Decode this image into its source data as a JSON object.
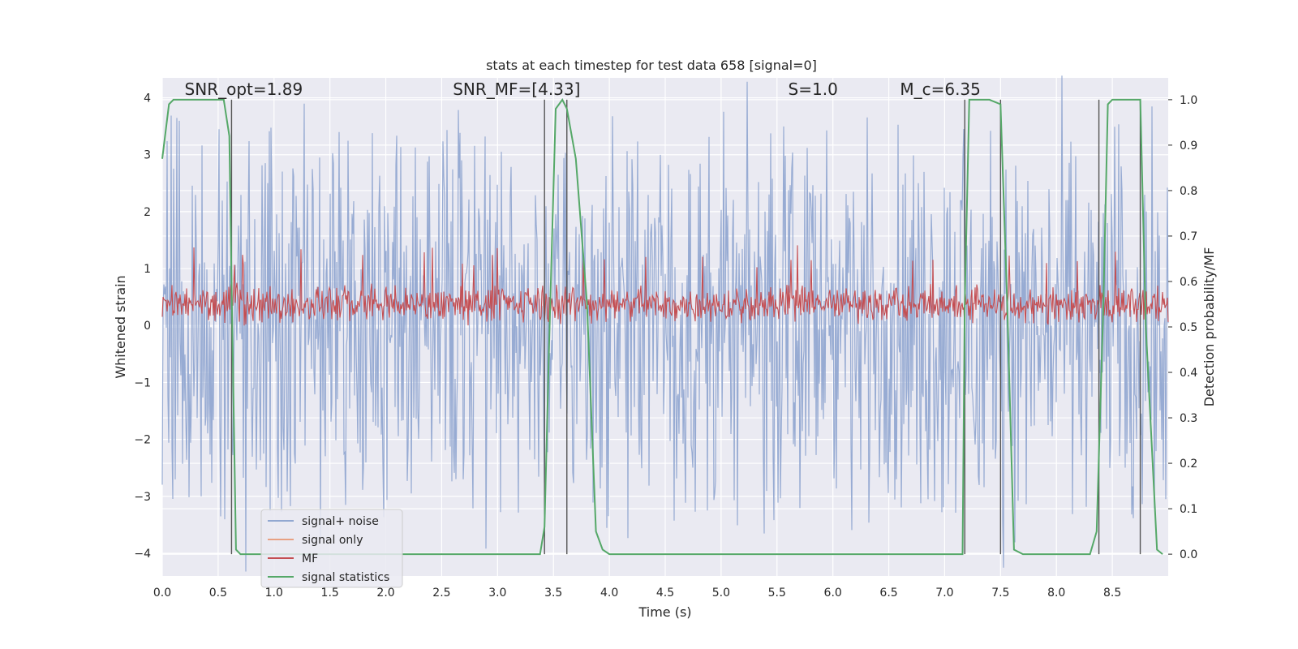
{
  "chart_data": {
    "type": "line",
    "title": "stats at each timestep for test data 658 [signal=0]",
    "xlabel": "Time (s)",
    "ylabel": "Whitened strain",
    "y2label": "Detection probability/MF",
    "xlim": [
      0.0,
      9.0
    ],
    "ylim": [
      -4.4,
      4.35
    ],
    "y2lim": [
      -0.048,
      1.048
    ],
    "xticks": [
      0.0,
      0.5,
      1.0,
      1.5,
      2.0,
      2.5,
      3.0,
      3.5,
      4.0,
      4.5,
      5.0,
      5.5,
      6.0,
      6.5,
      7.0,
      7.5,
      8.0,
      8.5
    ],
    "xtick_labels": [
      "0.0",
      "0.5",
      "1.0",
      "1.5",
      "2.0",
      "2.5",
      "3.0",
      "3.5",
      "4.0",
      "4.5",
      "5.0",
      "5.5",
      "6.0",
      "6.5",
      "7.0",
      "7.5",
      "8.0",
      "8.5"
    ],
    "yticks": [
      4,
      3,
      2,
      1,
      0,
      -1,
      -2,
      -3,
      -4
    ],
    "ytick_labels": [
      "4",
      "3",
      "2",
      "1",
      "0",
      "−1",
      "−2",
      "−3",
      "−4"
    ],
    "y2ticks": [
      1.0,
      0.9,
      0.8,
      0.7,
      0.6,
      0.5,
      0.4,
      0.3,
      0.2,
      0.1,
      0.0
    ],
    "y2tick_labels": [
      "1.0",
      "0.9",
      "0.8",
      "0.7",
      "0.6",
      "0.5",
      "0.4",
      "0.3",
      "0.2",
      "0.1",
      "0.0"
    ],
    "grid": true,
    "legend_position": "lower-left",
    "annotations": [
      {
        "text": "SNR_opt=1.89",
        "x": 0.2,
        "y": 4.05
      },
      {
        "text": "SNR_MF=[4.33]",
        "x": 2.6,
        "y": 4.05
      },
      {
        "text": "S=1.0",
        "x": 5.6,
        "y": 4.05
      },
      {
        "text": "M_c=6.35",
        "x": 6.6,
        "y": 4.05
      }
    ],
    "event_markers_x": [
      0.62,
      3.42,
      3.62,
      7.18,
      7.5,
      8.38,
      8.75
    ],
    "series": [
      {
        "name": "signal+ noise",
        "color": "#92a8d1",
        "kind": "noise",
        "amplitude": 1.55,
        "x_range": [
          0.0,
          9.0
        ]
      },
      {
        "name": "signal only",
        "color": "#e8a183",
        "kind": "flat",
        "x_range": [
          0.0,
          9.0
        ]
      },
      {
        "name": "MF",
        "color": "#c44e52",
        "kind": "noise-secondary",
        "baseline": 0.55,
        "amplitude": 0.03,
        "x_range": [
          0.0,
          9.0
        ]
      },
      {
        "name": "signal statistics",
        "color": "#55a868",
        "kind": "secondary",
        "x": [
          0.0,
          0.06,
          0.1,
          0.2,
          0.3,
          0.4,
          0.5,
          0.55,
          0.6,
          0.62,
          0.66,
          0.7,
          0.75,
          0.8,
          1.0,
          2.0,
          3.0,
          3.38,
          3.42,
          3.46,
          3.52,
          3.58,
          3.62,
          3.7,
          3.8,
          3.88,
          3.94,
          4.0,
          4.5,
          5.0,
          6.0,
          7.0,
          7.16,
          7.18,
          7.22,
          7.3,
          7.4,
          7.5,
          7.56,
          7.62,
          7.7,
          8.0,
          8.3,
          8.36,
          8.42,
          8.46,
          8.5,
          8.6,
          8.75,
          8.8,
          8.9,
          8.95
        ],
        "y": [
          0.87,
          0.99,
          1.0,
          1.0,
          1.0,
          1.0,
          1.0,
          1.0,
          0.92,
          0.6,
          0.01,
          0.0,
          0.0,
          0.0,
          0.0,
          0.0,
          0.0,
          0.0,
          0.06,
          0.45,
          0.98,
          1.0,
          0.98,
          0.87,
          0.55,
          0.05,
          0.01,
          0.0,
          0.0,
          0.0,
          0.0,
          0.0,
          0.0,
          0.55,
          1.0,
          1.0,
          1.0,
          0.99,
          0.55,
          0.01,
          0.0,
          0.0,
          0.0,
          0.05,
          0.55,
          0.99,
          1.0,
          1.0,
          1.0,
          0.5,
          0.01,
          0.0
        ]
      }
    ]
  }
}
